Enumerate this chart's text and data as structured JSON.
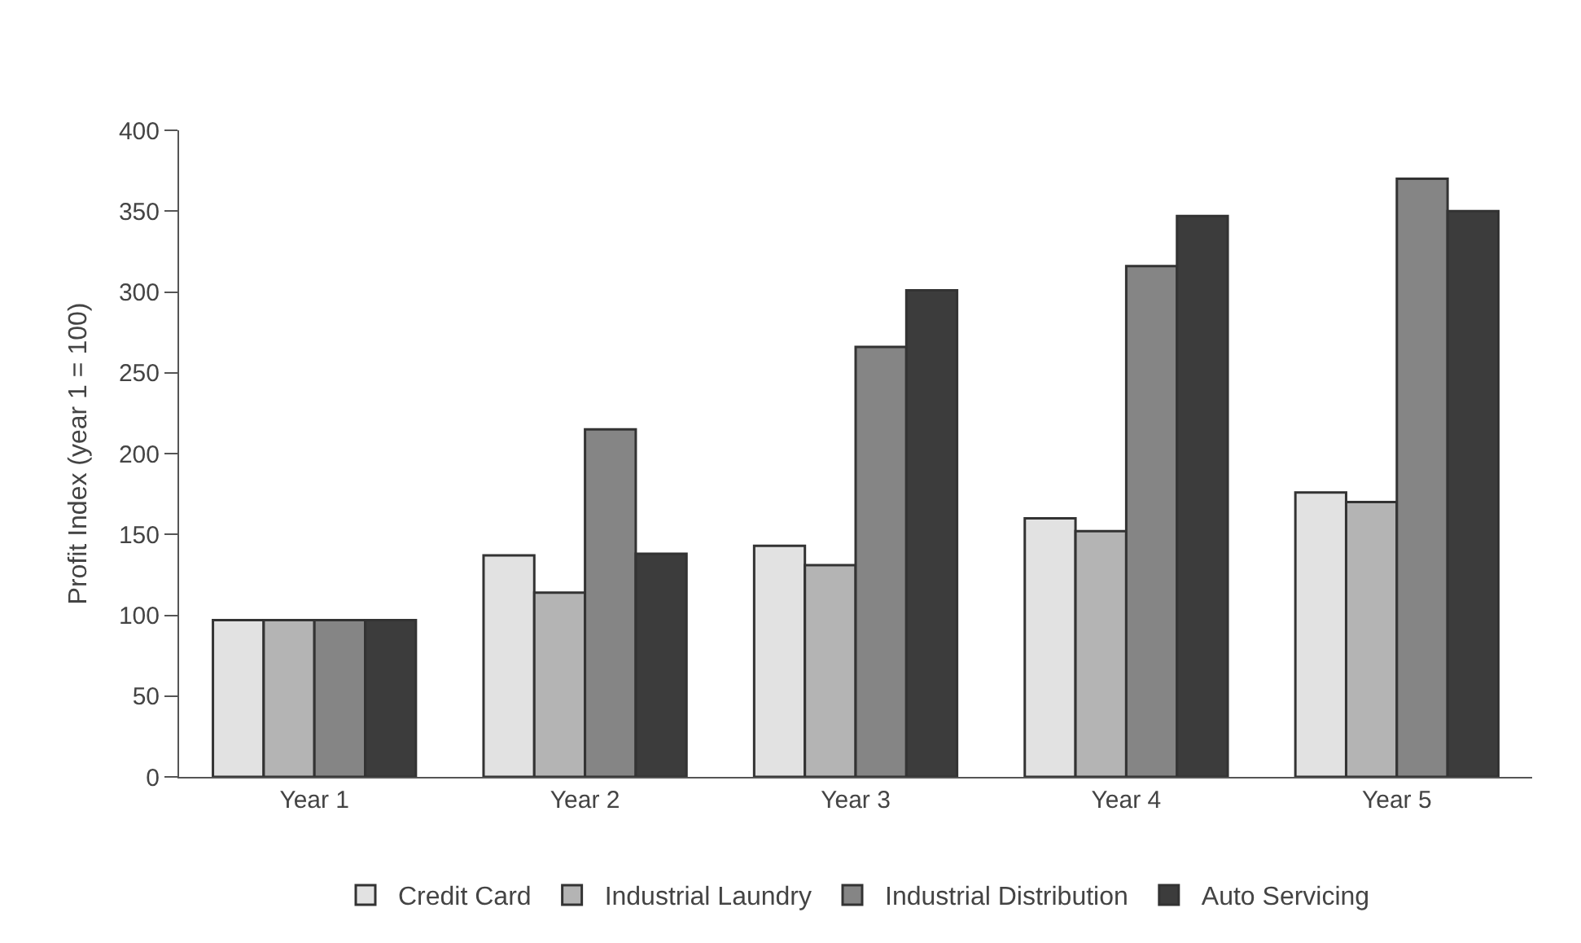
{
  "chart_data": {
    "type": "bar",
    "ylabel": "Profit Index (year 1 = 100)",
    "categories": [
      "Year 1",
      "Year 2",
      "Year 3",
      "Year 4",
      "Year 5"
    ],
    "series": [
      {
        "name": "Credit Card",
        "color": "#e2e2e2",
        "values": [
          97,
          137,
          143,
          160,
          176
        ]
      },
      {
        "name": "Industrial Laundry",
        "color": "#b4b4b4",
        "values": [
          97,
          114,
          131,
          152,
          170
        ]
      },
      {
        "name": "Industrial Distribution",
        "color": "#858585",
        "values": [
          97,
          215,
          266,
          316,
          370
        ]
      },
      {
        "name": "Auto Servicing",
        "color": "#3c3c3c",
        "values": [
          97,
          138,
          301,
          347,
          350
        ]
      }
    ],
    "ylim": [
      0,
      400
    ],
    "yticks": [
      0,
      50,
      100,
      150,
      200,
      250,
      300,
      350,
      400
    ],
    "legend": "bottom"
  }
}
